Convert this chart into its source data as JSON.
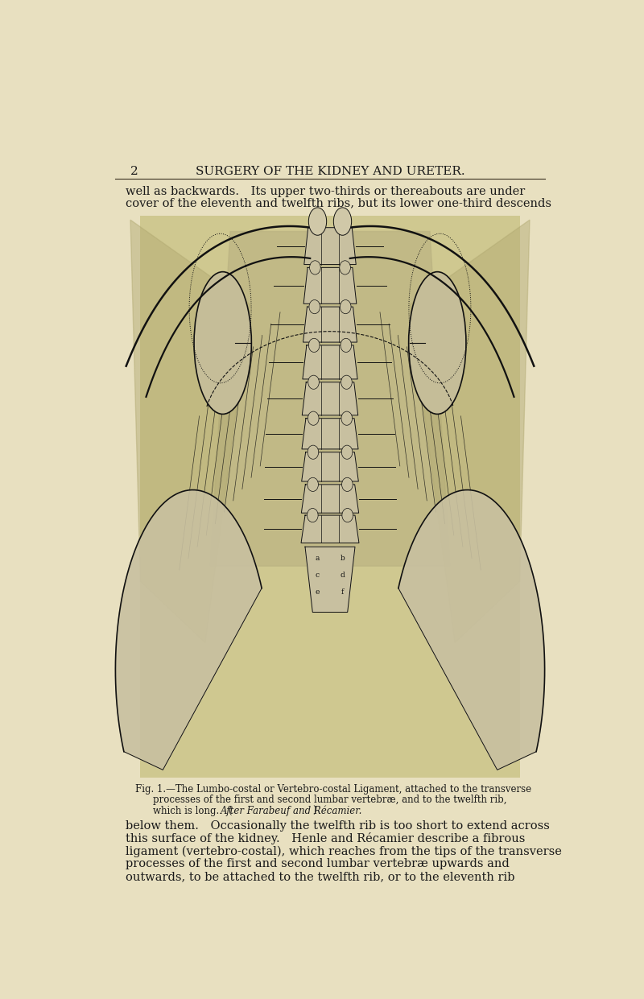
{
  "background_color": "#e8e0c0",
  "title_text": "SURGERY OF THE KIDNEY AND URETER.",
  "page_number": "2",
  "top_text_line1": "well as backwards. Its upper two-thirds or thereabouts are under",
  "top_text_line2": "cover of the eleventh and twelfth ribs, but its lower one-third descends",
  "caption_line1": "Fig. 1.—The Lumbo-costal or Vertebro-costal Ligament, attached to the transverse",
  "caption_line2": "processes of the first and second lumbar vertebræ, and to the twelfth rib,",
  "caption_line3_a": "which is long. (",
  "caption_line3_b": "After Farabeuf and Récamier.",
  "caption_line3_c": ")",
  "body_line1": "below them. Occasionally the twelfth rib is too short to extend across",
  "body_line2": "this surface of the kidney. Henle and Récamier describe a fibrous",
  "body_line3": "ligament (vertebro-costal), which reaches from the tips of the transverse",
  "body_line4": "processes of the first and second lumbar vertebræ upwards and",
  "body_line5": "outwards, to be attached to the twelfth rib, or to the eleventh rib",
  "text_color": "#1a1a1a",
  "spine_fill": "#c8c0a0",
  "fig_bg": "#d0c8a8"
}
